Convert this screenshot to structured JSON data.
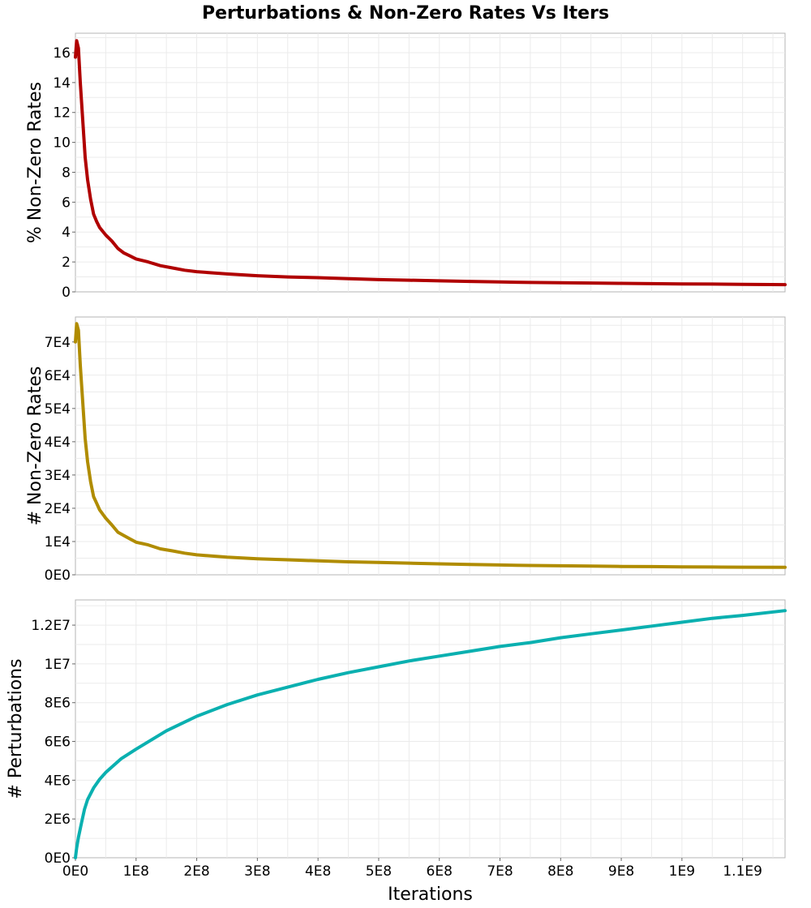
{
  "title": "Perturbations & Non-Zero Rates Vs Iters",
  "chart_data": [
    {
      "type": "line",
      "title": "",
      "xlabel": "",
      "ylabel": "% Non-Zero Rates",
      "xlim": [
        0,
        1170000000
      ],
      "ylim": [
        0,
        17.3
      ],
      "yticks": [
        0,
        2,
        4,
        6,
        8,
        10,
        12,
        14,
        16
      ],
      "ytick_labels": [
        "0",
        "2",
        "4",
        "6",
        "8",
        "10",
        "12",
        "14",
        "16"
      ],
      "show_x_ticklabels": false,
      "grid": true,
      "series": [
        {
          "color": "#b00000",
          "x": [
            0,
            2000000,
            5000000,
            8000000,
            12000000,
            16000000,
            20000000,
            25000000,
            30000000,
            35000000,
            40000000,
            50000000,
            60000000,
            70000000,
            80000000,
            90000000,
            100000000,
            120000000,
            140000000,
            160000000,
            180000000,
            200000000,
            250000000,
            300000000,
            350000000,
            400000000,
            450000000,
            500000000,
            550000000,
            600000000,
            650000000,
            700000000,
            750000000,
            800000000,
            850000000,
            900000000,
            950000000,
            1000000000,
            1050000000,
            1100000000,
            1170000000
          ],
          "y": [
            15.7,
            16.8,
            16.3,
            14.0,
            11.5,
            9.0,
            7.5,
            6.2,
            5.2,
            4.7,
            4.3,
            3.8,
            3.4,
            2.9,
            2.6,
            2.4,
            2.2,
            2.0,
            1.75,
            1.6,
            1.45,
            1.35,
            1.2,
            1.08,
            1.0,
            0.95,
            0.88,
            0.82,
            0.78,
            0.74,
            0.7,
            0.66,
            0.63,
            0.61,
            0.59,
            0.57,
            0.55,
            0.53,
            0.52,
            0.5,
            0.48
          ]
        }
      ]
    },
    {
      "type": "line",
      "title": "",
      "xlabel": "",
      "ylabel": "# Non-Zero Rates",
      "xlim": [
        0,
        1170000000
      ],
      "ylim": [
        0,
        77500
      ],
      "yticks": [
        0,
        10000,
        20000,
        30000,
        40000,
        50000,
        60000,
        70000
      ],
      "ytick_labels": [
        "0E0",
        "1E4",
        "2E4",
        "3E4",
        "4E4",
        "5E4",
        "6E4",
        "7E4"
      ],
      "show_x_ticklabels": false,
      "grid": true,
      "series": [
        {
          "color": "#b08c00",
          "x": [
            0,
            2000000,
            5000000,
            8000000,
            12000000,
            16000000,
            20000000,
            25000000,
            30000000,
            35000000,
            40000000,
            50000000,
            60000000,
            70000000,
            80000000,
            90000000,
            100000000,
            120000000,
            140000000,
            160000000,
            180000000,
            200000000,
            250000000,
            300000000,
            350000000,
            400000000,
            450000000,
            500000000,
            550000000,
            600000000,
            650000000,
            700000000,
            750000000,
            800000000,
            850000000,
            900000000,
            950000000,
            1000000000,
            1050000000,
            1100000000,
            1170000000
          ],
          "y": [
            70000,
            75500,
            73500,
            63000,
            52000,
            41000,
            34000,
            28000,
            23500,
            21500,
            19500,
            17000,
            15000,
            12800,
            11800,
            10800,
            9800,
            9000,
            7800,
            7200,
            6500,
            6000,
            5300,
            4800,
            4500,
            4200,
            3900,
            3700,
            3500,
            3300,
            3100,
            2950,
            2800,
            2700,
            2600,
            2500,
            2450,
            2400,
            2350,
            2300,
            2250
          ]
        }
      ]
    },
    {
      "type": "line",
      "title": "",
      "xlabel": "Iterations",
      "ylabel": "# Perturbations",
      "xlim": [
        0,
        1170000000
      ],
      "ylim": [
        0,
        13300000
      ],
      "yticks": [
        0,
        2000000,
        4000000,
        6000000,
        8000000,
        10000000,
        12000000
      ],
      "ytick_labels": [
        "0E0",
        "2E6",
        "4E6",
        "6E6",
        "8E6",
        "1E7",
        "1.2E7"
      ],
      "xticks": [
        0,
        100000000,
        200000000,
        300000000,
        400000000,
        500000000,
        600000000,
        700000000,
        800000000,
        900000000,
        1000000000,
        1100000000
      ],
      "xtick_labels": [
        "0E0",
        "1E8",
        "2E8",
        "3E8",
        "4E8",
        "5E8",
        "6E8",
        "7E8",
        "8E8",
        "9E8",
        "1E9",
        "1.1E9"
      ],
      "show_x_ticklabels": true,
      "grid": true,
      "series": [
        {
          "color": "#0ab0b0",
          "x": [
            0,
            2000000,
            5000000,
            10000000,
            15000000,
            20000000,
            30000000,
            40000000,
            50000000,
            75000000,
            100000000,
            150000000,
            200000000,
            250000000,
            300000000,
            350000000,
            400000000,
            450000000,
            500000000,
            550000000,
            600000000,
            650000000,
            700000000,
            750000000,
            800000000,
            850000000,
            900000000,
            950000000,
            1000000000,
            1050000000,
            1100000000,
            1170000000
          ],
          "y": [
            0,
            500000,
            1050000,
            1800000,
            2500000,
            3000000,
            3600000,
            4050000,
            4400000,
            5100000,
            5600000,
            6550000,
            7300000,
            7900000,
            8400000,
            8800000,
            9200000,
            9550000,
            9850000,
            10150000,
            10400000,
            10650000,
            10900000,
            11100000,
            11350000,
            11550000,
            11750000,
            11950000,
            12150000,
            12350000,
            12500000,
            12750000
          ]
        }
      ]
    }
  ]
}
